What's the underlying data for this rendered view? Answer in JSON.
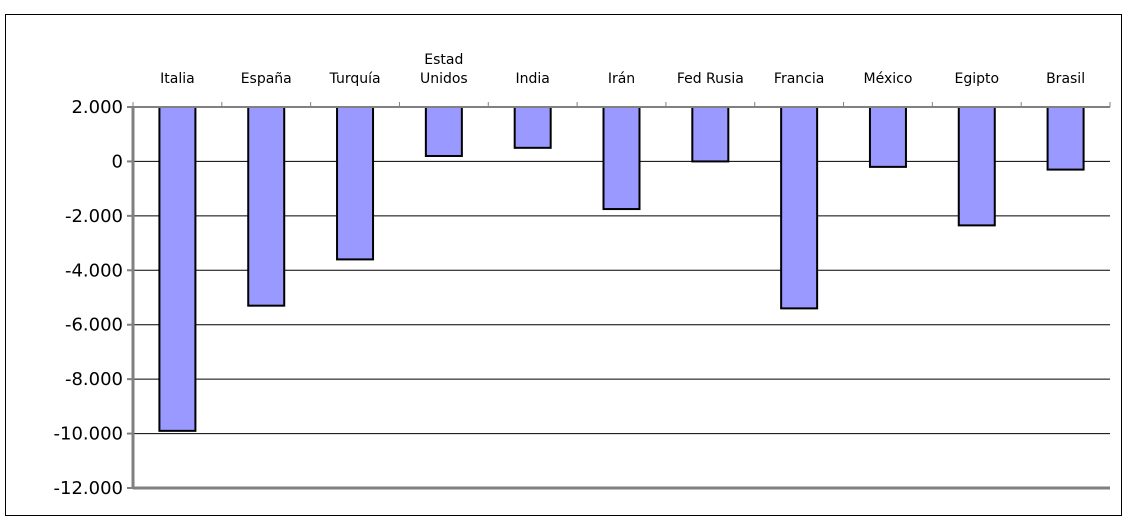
{
  "chart_data": {
    "type": "bar",
    "title": "",
    "xlabel": "",
    "ylabel": "",
    "categories": [
      [
        "Italia"
      ],
      [
        "España"
      ],
      [
        "Turquía"
      ],
      [
        "Estad",
        "Unidos"
      ],
      [
        "India"
      ],
      [
        "Irán"
      ],
      [
        "Fed Rusia"
      ],
      [
        "Francia"
      ],
      [
        "México"
      ],
      [
        "Egipto"
      ],
      [
        "Brasil"
      ]
    ],
    "values": [
      -9900,
      -5300,
      -3600,
      200,
      500,
      -1750,
      0,
      -5400,
      -200,
      -2350,
      -300
    ],
    "ylim": [
      -12000,
      2000
    ],
    "yticks": [
      2000,
      0,
      -2000,
      -4000,
      -6000,
      -8000,
      -10000,
      -12000
    ],
    "ytick_labels": [
      "2.000",
      "0",
      "-2.000",
      "-4.000",
      "-6.000",
      "-8.000",
      "-10.000",
      "-12.000"
    ],
    "grid": true,
    "x_axis_position": "top",
    "legend": "none",
    "colors": {
      "bar_fill": "#9999FF",
      "bar_stroke": "#000000",
      "grid": "#000000",
      "axis": "#808080"
    }
  }
}
